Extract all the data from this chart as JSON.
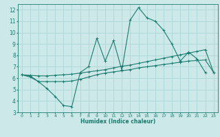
{
  "xlabel": "Humidex (Indice chaleur)",
  "xlim": [
    -0.5,
    23.5
  ],
  "ylim": [
    3,
    12.5
  ],
  "yticks": [
    3,
    4,
    5,
    6,
    7,
    8,
    9,
    10,
    11,
    12
  ],
  "xticks": [
    0,
    1,
    2,
    3,
    4,
    5,
    6,
    7,
    8,
    9,
    10,
    11,
    12,
    13,
    14,
    15,
    16,
    17,
    18,
    19,
    20,
    21,
    22,
    23
  ],
  "bg_color": "#cce8e8",
  "line_color": "#1a7a6e",
  "grid_color": "#b0d8d8",
  "series": [
    {
      "x": [
        0,
        1,
        2,
        3,
        4,
        5,
        6,
        7,
        8,
        9,
        10,
        11,
        12,
        13,
        14,
        15,
        16,
        17,
        18,
        19,
        20,
        21,
        22
      ],
      "y": [
        6.3,
        6.2,
        5.7,
        5.1,
        4.4,
        3.6,
        3.5,
        6.5,
        7.0,
        9.5,
        7.5,
        9.3,
        6.7,
        11.1,
        12.2,
        11.3,
        11.0,
        10.2,
        9.0,
        7.5,
        8.3,
        7.7,
        6.5
      ]
    },
    {
      "x": [
        0,
        1,
        2,
        3,
        4,
        5,
        6,
        7,
        8,
        9,
        10,
        11,
        12,
        13,
        14,
        15,
        16,
        17,
        18,
        19,
        20,
        21,
        22,
        23
      ],
      "y": [
        6.3,
        6.25,
        6.2,
        6.2,
        6.25,
        6.3,
        6.35,
        6.45,
        6.55,
        6.65,
        6.75,
        6.9,
        7.05,
        7.15,
        7.3,
        7.45,
        7.6,
        7.75,
        7.9,
        8.05,
        8.2,
        8.35,
        8.5,
        6.5
      ]
    },
    {
      "x": [
        0,
        1,
        2,
        3,
        4,
        5,
        6,
        7,
        8,
        9,
        10,
        11,
        12,
        13,
        14,
        15,
        16,
        17,
        18,
        19,
        20,
        21,
        22,
        23
      ],
      "y": [
        6.3,
        6.1,
        5.7,
        5.7,
        5.7,
        5.7,
        5.75,
        5.9,
        6.1,
        6.3,
        6.45,
        6.55,
        6.65,
        6.75,
        6.9,
        7.0,
        7.1,
        7.2,
        7.3,
        7.4,
        7.5,
        7.55,
        7.6,
        6.5
      ]
    }
  ]
}
